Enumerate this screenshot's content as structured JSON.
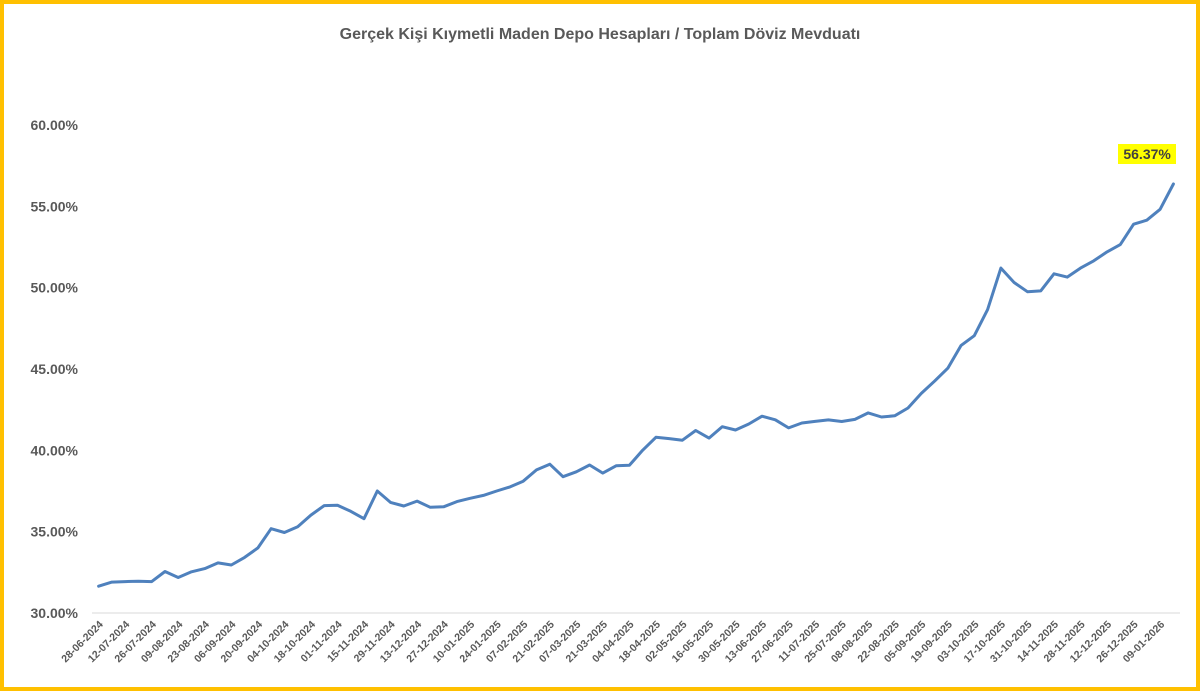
{
  "chart_data": {
    "type": "line",
    "title": "Gerçek Kişi Kıymetli Maden Depo Hesapları / Toplam Döviz Mevduatı",
    "xlabel": "",
    "ylabel": "",
    "ylim": [
      30,
      60
    ],
    "y_ticks": [
      30,
      35,
      40,
      45,
      50,
      55,
      60
    ],
    "y_tick_labels": [
      "30.00%",
      "35.00%",
      "40.00%",
      "45.00%",
      "50.00%",
      "55.00%",
      "60.00%"
    ],
    "x_tick_labels": [
      "28-06-2024",
      "12-07-2024",
      "26-07-2024",
      "09-08-2024",
      "23-08-2024",
      "06-09-2024",
      "20-09-2024",
      "04-10-2024",
      "18-10-2024",
      "01-11-2024",
      "15-11-2024",
      "29-11-2024",
      "13-12-2024",
      "27-12-2024",
      "10-01-2025",
      "24-01-2025",
      "07-02-2025",
      "21-02-2025",
      "07-03-2025",
      "21-03-2025",
      "04-04-2025",
      "18-04-2025",
      "02-05-2025",
      "16-05-2025",
      "30-05-2025",
      "13-06-2025",
      "27-06-2025",
      "11-07-2025",
      "25-07-2025",
      "08-08-2025",
      "22-08-2025",
      "05-09-2025",
      "19-09-2025",
      "03-10-2025",
      "17-10-2025",
      "31-10-2025",
      "14-11-2025",
      "28-11-2025",
      "12-12-2025",
      "26-12-2025",
      "09-01-2026"
    ],
    "grid": false,
    "series": [
      {
        "color": "#4f81bd",
        "values": [
          31.65,
          31.9,
          31.93,
          31.95,
          31.93,
          32.55,
          32.18,
          32.53,
          32.73,
          33.08,
          32.95,
          33.42,
          34.0,
          35.18,
          34.95,
          35.3,
          36.02,
          36.6,
          36.62,
          36.25,
          35.8,
          37.5,
          36.8,
          36.58,
          36.88,
          36.5,
          36.53,
          36.85,
          37.05,
          37.23,
          37.5,
          37.75,
          38.1,
          38.8,
          39.15,
          38.38,
          38.68,
          39.1,
          38.6,
          39.05,
          39.08,
          40.0,
          40.8,
          40.72,
          40.62,
          41.22,
          40.75,
          41.45,
          41.25,
          41.62,
          42.1,
          41.88,
          41.38,
          41.68,
          41.78,
          41.87,
          41.77,
          41.9,
          42.3,
          42.05,
          42.12,
          42.6,
          43.5,
          44.25,
          45.05,
          46.45,
          47.05,
          48.65,
          51.2,
          50.32,
          49.75,
          49.8,
          50.85,
          50.65,
          51.2,
          51.65,
          52.2,
          52.65,
          53.9,
          54.15,
          54.82,
          56.37
        ]
      }
    ],
    "annotations": [
      {
        "text": "56.37%",
        "background": "#ffff00"
      }
    ]
  }
}
